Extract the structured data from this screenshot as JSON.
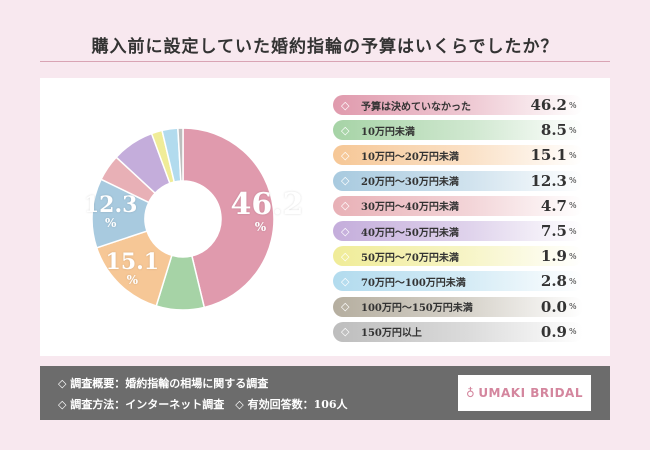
{
  "title": "購入前に設定していた婚約指輪の予算はいくらでしたか？",
  "chart_data": {
    "type": "pie",
    "donut": true,
    "categories": [
      "予算は決めていなかった",
      "10万円未満",
      "10万円～20万円未満",
      "20万円～30万円未満",
      "30万円～40万円未満",
      "40万円～50万円未満",
      "50万円～70万円未満",
      "70万円～100万円未満",
      "100万円～150万円未満",
      "150万円以上"
    ],
    "values": [
      46.2,
      8.5,
      15.1,
      12.3,
      4.7,
      7.5,
      1.9,
      2.8,
      0.0,
      0.9
    ],
    "unit": "%",
    "colors": [
      "#e09aad",
      "#a6d3a6",
      "#f6c796",
      "#a8cadf",
      "#e8b0b6",
      "#c4addb",
      "#f0ec98",
      "#b2dbee",
      "#b5ae9f",
      "#bdbdbd"
    ],
    "legend_position": "right"
  },
  "footer": {
    "line1": "◇ 調査概要：婚約指輪の相場に関する調査",
    "line2": "◇ 調査方法：インターネット調査　◇ 有効回答数：106人",
    "logo": "UMAKI BRIDAL"
  }
}
